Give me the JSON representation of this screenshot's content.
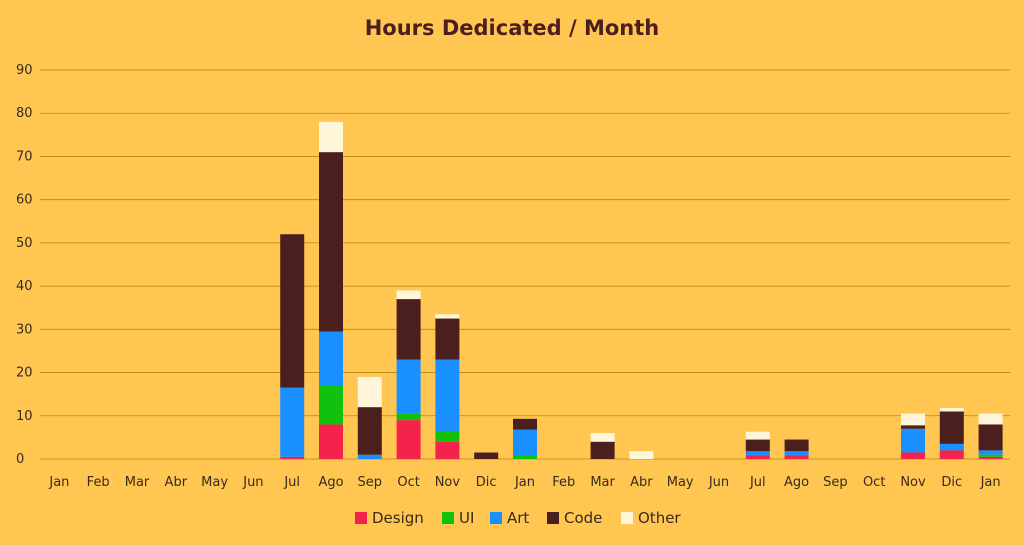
{
  "chart_data": {
    "type": "bar",
    "stacked": true,
    "title": "Hours Dedicated / Month",
    "xlabel": "",
    "ylabel": "",
    "ylim": [
      0,
      90
    ],
    "yticks": [
      0,
      10,
      20,
      30,
      40,
      50,
      60,
      70,
      80,
      90
    ],
    "grid": true,
    "legend_position": "bottom",
    "categories": [
      "Jan",
      "Feb",
      "Mar",
      "Abr",
      "May",
      "Jun",
      "Jul",
      "Ago",
      "Sep",
      "Oct",
      "Nov",
      "Dic",
      "Jan",
      "Feb",
      "Mar",
      "Abr",
      "May",
      "Jun",
      "Jul",
      "Ago",
      "Sep",
      "Oct",
      "Nov",
      "Dic",
      "Jan"
    ],
    "series": [
      {
        "name": "Design",
        "color": "#F5234B",
        "values": [
          0,
          0,
          0,
          0,
          0,
          0,
          0.5,
          8,
          0,
          9,
          4,
          0,
          0,
          0,
          0,
          0,
          0,
          0,
          0.8,
          0.8,
          0,
          0,
          1.5,
          2,
          0.5
        ]
      },
      {
        "name": "UI",
        "color": "#11C10E",
        "values": [
          0,
          0,
          0,
          0,
          0,
          0,
          0,
          9,
          0,
          1.5,
          2.5,
          0,
          0.8,
          0,
          0,
          0,
          0,
          0,
          0,
          0,
          0,
          0,
          0,
          0,
          0.5
        ]
      },
      {
        "name": "Art",
        "color": "#1A8FFF",
        "values": [
          0,
          0,
          0,
          0,
          0,
          0,
          16,
          12.5,
          1,
          12.5,
          16.5,
          0,
          6,
          0,
          0,
          0,
          0,
          0,
          1,
          1,
          0,
          0,
          5.5,
          1.5,
          1
        ]
      },
      {
        "name": "Code",
        "color": "#4A1F1E",
        "values": [
          0,
          0,
          0,
          0,
          0,
          0,
          35.5,
          41.5,
          11,
          14,
          9.5,
          1.5,
          2.5,
          0,
          4,
          0,
          0,
          0,
          2.7,
          2.7,
          0,
          0,
          0.8,
          7.5,
          6
        ]
      },
      {
        "name": "Other",
        "color": "#FFF6DA",
        "values": [
          0,
          0,
          0,
          0,
          0,
          0,
          0,
          7,
          7,
          2,
          1,
          0,
          0,
          0,
          2,
          1.8,
          0,
          0,
          1.8,
          0,
          0,
          0,
          2.7,
          0.8,
          2.5
        ]
      }
    ]
  }
}
